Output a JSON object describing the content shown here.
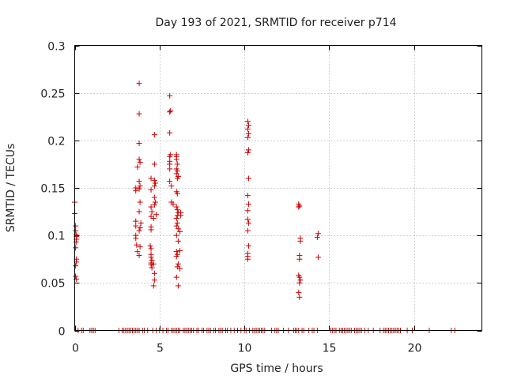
{
  "chart_data": {
    "type": "scatter",
    "title": "Day 193 of 2021, SRMTID for receiver p714",
    "xlabel": "GPS time / hours",
    "ylabel": "SRMTID / TECUs",
    "xlim": [
      0,
      24
    ],
    "ylim": [
      0,
      0.3
    ],
    "grid": true,
    "marker": "+",
    "series_color": "#cc0000",
    "x_ticks": [
      0,
      5,
      10,
      15,
      20
    ],
    "x_tick_labels": [
      "0",
      "5",
      "10",
      "15",
      "20"
    ],
    "y_ticks": [
      0,
      0.05,
      0.1,
      0.15,
      0.2,
      0.25,
      0.3
    ],
    "y_tick_labels": [
      "0",
      "0.05",
      "0.1",
      "0.15",
      "0.2",
      "0.25",
      "0.3"
    ],
    "series": [
      {
        "name": "SRMTID",
        "points": [
          [
            0.0,
            0.135
          ],
          [
            0.0,
            0.123
          ],
          [
            0.05,
            0.11
          ],
          [
            0.05,
            0.105
          ],
          [
            0.08,
            0.101
          ],
          [
            0.1,
            0.099
          ],
          [
            0.1,
            0.096
          ],
          [
            0.08,
            0.093
          ],
          [
            0.05,
            0.087
          ],
          [
            0.1,
            0.075
          ],
          [
            0.1,
            0.072
          ],
          [
            0.05,
            0.068
          ],
          [
            0.05,
            0.057
          ],
          [
            0.1,
            0.054
          ],
          [
            3.6,
            0.15
          ],
          [
            3.6,
            0.147
          ],
          [
            3.6,
            0.115
          ],
          [
            3.6,
            0.11
          ],
          [
            3.6,
            0.1
          ],
          [
            3.6,
            0.097
          ],
          [
            3.65,
            0.09
          ],
          [
            3.7,
            0.083
          ],
          [
            3.8,
            0.26
          ],
          [
            3.8,
            0.228
          ],
          [
            3.8,
            0.197
          ],
          [
            3.8,
            0.18
          ],
          [
            3.85,
            0.177
          ],
          [
            3.7,
            0.172
          ],
          [
            3.8,
            0.157
          ],
          [
            3.85,
            0.152
          ],
          [
            3.8,
            0.149
          ],
          [
            3.85,
            0.135
          ],
          [
            3.8,
            0.125
          ],
          [
            3.9,
            0.113
          ],
          [
            3.85,
            0.108
          ],
          [
            3.8,
            0.105
          ],
          [
            3.85,
            0.088
          ],
          [
            3.8,
            0.079
          ],
          [
            4.5,
            0.16
          ],
          [
            4.5,
            0.148
          ],
          [
            4.5,
            0.13
          ],
          [
            4.55,
            0.125
          ],
          [
            4.5,
            0.12
          ],
          [
            4.5,
            0.109
          ],
          [
            4.5,
            0.106
          ],
          [
            4.45,
            0.089
          ],
          [
            4.5,
            0.086
          ],
          [
            4.5,
            0.08
          ],
          [
            4.5,
            0.077
          ],
          [
            4.55,
            0.074
          ],
          [
            4.5,
            0.071
          ],
          [
            4.5,
            0.069
          ],
          [
            4.55,
            0.066
          ],
          [
            4.7,
            0.206
          ],
          [
            4.7,
            0.175
          ],
          [
            4.7,
            0.158
          ],
          [
            4.75,
            0.155
          ],
          [
            4.7,
            0.152
          ],
          [
            4.7,
            0.14
          ],
          [
            4.75,
            0.135
          ],
          [
            4.7,
            0.132
          ],
          [
            4.8,
            0.122
          ],
          [
            4.65,
            0.118
          ],
          [
            4.65,
            0.07
          ],
          [
            4.7,
            0.06
          ],
          [
            4.7,
            0.053
          ],
          [
            4.65,
            0.047
          ],
          [
            5.6,
            0.247
          ],
          [
            5.65,
            0.231
          ],
          [
            5.6,
            0.23
          ],
          [
            5.6,
            0.208
          ],
          [
            5.65,
            0.185
          ],
          [
            5.6,
            0.183
          ],
          [
            5.6,
            0.178
          ],
          [
            5.6,
            0.175
          ],
          [
            5.6,
            0.17
          ],
          [
            5.6,
            0.157
          ],
          [
            5.7,
            0.152
          ],
          [
            5.7,
            0.135
          ],
          [
            5.8,
            0.133
          ],
          [
            6.0,
            0.185
          ],
          [
            6.0,
            0.183
          ],
          [
            6.0,
            0.18
          ],
          [
            6.05,
            0.175
          ],
          [
            6.0,
            0.17
          ],
          [
            6.05,
            0.168
          ],
          [
            6.0,
            0.165
          ],
          [
            6.1,
            0.162
          ],
          [
            6.05,
            0.16
          ],
          [
            6.0,
            0.146
          ],
          [
            6.05,
            0.144
          ],
          [
            6.0,
            0.13
          ],
          [
            6.05,
            0.127
          ],
          [
            6.1,
            0.124
          ],
          [
            6.05,
            0.121
          ],
          [
            6.0,
            0.118
          ],
          [
            6.05,
            0.113
          ],
          [
            6.0,
            0.11
          ],
          [
            6.1,
            0.107
          ],
          [
            6.0,
            0.1
          ],
          [
            6.1,
            0.094
          ],
          [
            6.0,
            0.083
          ],
          [
            6.05,
            0.08
          ],
          [
            6.0,
            0.078
          ],
          [
            6.1,
            0.07
          ],
          [
            6.05,
            0.067
          ],
          [
            6.0,
            0.056
          ],
          [
            6.1,
            0.047
          ],
          [
            6.25,
            0.124
          ],
          [
            6.25,
            0.121
          ],
          [
            6.2,
            0.104
          ],
          [
            6.2,
            0.084
          ],
          [
            6.2,
            0.065
          ],
          [
            10.2,
            0.22
          ],
          [
            10.25,
            0.216
          ],
          [
            10.2,
            0.212
          ],
          [
            10.25,
            0.207
          ],
          [
            10.2,
            0.203
          ],
          [
            10.25,
            0.19
          ],
          [
            10.2,
            0.187
          ],
          [
            10.25,
            0.16
          ],
          [
            10.2,
            0.142
          ],
          [
            10.25,
            0.133
          ],
          [
            10.2,
            0.126
          ],
          [
            10.2,
            0.117
          ],
          [
            10.25,
            0.113
          ],
          [
            10.2,
            0.105
          ],
          [
            10.25,
            0.089
          ],
          [
            10.2,
            0.081
          ],
          [
            10.2,
            0.078
          ],
          [
            10.2,
            0.075
          ],
          [
            13.2,
            0.133
          ],
          [
            13.25,
            0.131
          ],
          [
            13.2,
            0.13
          ],
          [
            13.3,
            0.097
          ],
          [
            13.3,
            0.094
          ],
          [
            13.25,
            0.079
          ],
          [
            13.25,
            0.075
          ],
          [
            13.2,
            0.058
          ],
          [
            13.25,
            0.056
          ],
          [
            13.3,
            0.053
          ],
          [
            13.25,
            0.05
          ],
          [
            13.2,
            0.04
          ],
          [
            13.25,
            0.035
          ],
          [
            14.35,
            0.102
          ],
          [
            14.3,
            0.098
          ],
          [
            14.35,
            0.077
          ]
        ],
        "zero_x": [
          0.2,
          0.4,
          0.5,
          0.9,
          1.0,
          1.1,
          1.2,
          2.6,
          2.8,
          2.9,
          3.0,
          3.1,
          3.2,
          3.3,
          3.4,
          3.5,
          3.6,
          3.7,
          3.8,
          4.0,
          4.1,
          4.3,
          4.6,
          4.8,
          5.0,
          5.2,
          5.4,
          5.5,
          5.7,
          5.8,
          5.9,
          6.0,
          6.1,
          6.2,
          6.4,
          6.5,
          6.6,
          6.7,
          6.8,
          6.9,
          7.0,
          7.2,
          7.3,
          7.5,
          7.6,
          7.8,
          7.9,
          8.0,
          8.2,
          8.3,
          8.5,
          8.6,
          8.7,
          8.9,
          9.0,
          9.2,
          9.4,
          9.6,
          9.8,
          10.0,
          10.1,
          10.3,
          10.5,
          10.6,
          10.7,
          10.8,
          10.9,
          11.0,
          11.1,
          11.2,
          11.6,
          11.8,
          11.9,
          12.0,
          12.3,
          12.6,
          12.9,
          13.0,
          13.1,
          13.2,
          13.4,
          13.5,
          13.8,
          14.0,
          14.1,
          14.3,
          15.1,
          15.2,
          15.3,
          15.4,
          15.6,
          15.7,
          15.8,
          15.9,
          16.0,
          16.1,
          16.2,
          16.3,
          16.5,
          16.6,
          16.7,
          16.8,
          16.9,
          17.1,
          17.3,
          17.6,
          18.0,
          18.2,
          18.3,
          18.4,
          18.5,
          18.6,
          18.7,
          18.8,
          18.9,
          19.0,
          19.1,
          19.2,
          19.6,
          19.9,
          20.9,
          22.2,
          22.4
        ]
      }
    ]
  }
}
